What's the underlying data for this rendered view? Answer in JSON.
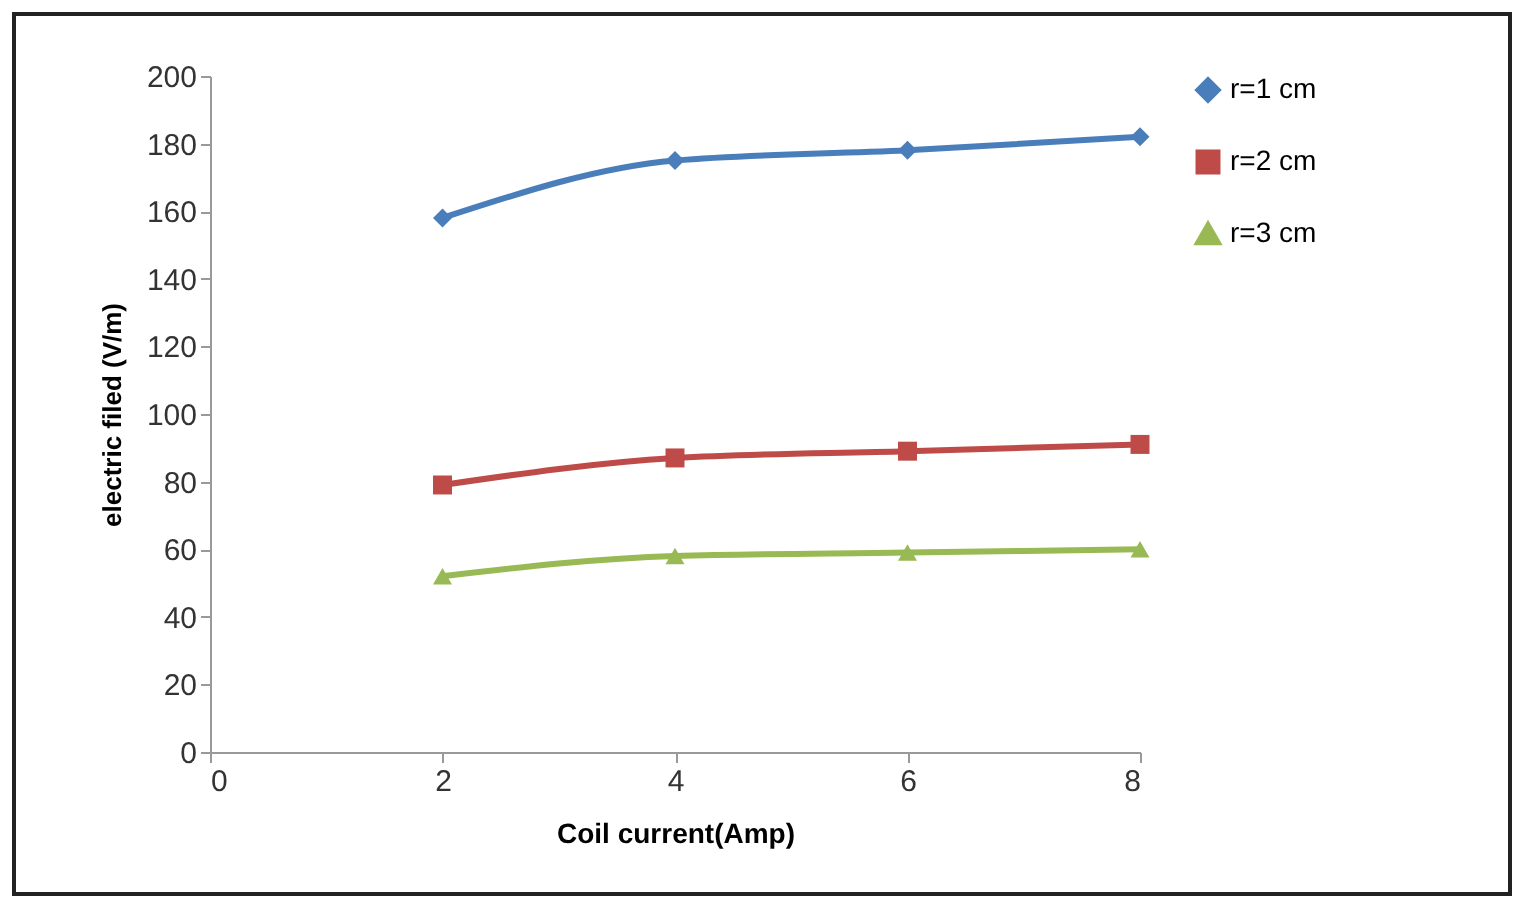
{
  "chart_data": {
    "type": "line",
    "xlabel": "Coil current(Amp)",
    "ylabel": "electric filed (V/m)",
    "x": [
      2,
      4,
      6,
      8
    ],
    "series": [
      {
        "name": "r=1 cm",
        "color": "#4a7ebb",
        "marker": "diamond",
        "values": [
          158,
          175,
          178,
          182
        ]
      },
      {
        "name": "r=2 cm",
        "color": "#be4b48",
        "marker": "square",
        "values": [
          79,
          87,
          89,
          91
        ]
      },
      {
        "name": "r=3 cm",
        "color": "#98b954",
        "marker": "triangle",
        "values": [
          52,
          58,
          59,
          60
        ]
      }
    ],
    "xlim": [
      0,
      8
    ],
    "xticks": [
      0,
      2,
      4,
      6,
      8
    ],
    "ylim": [
      0,
      200
    ],
    "yticks": [
      0,
      20,
      40,
      60,
      80,
      100,
      120,
      140,
      160,
      180,
      200
    ],
    "grid": false,
    "legend": "right",
    "line_style": "solid"
  }
}
